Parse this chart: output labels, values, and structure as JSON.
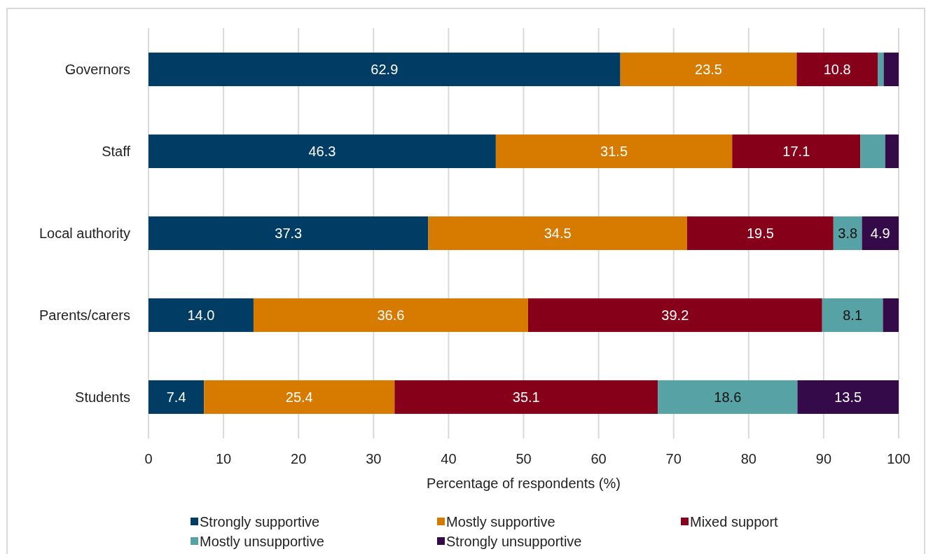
{
  "chart_data": {
    "type": "bar",
    "orientation": "horizontal",
    "stacked": true,
    "xlabel": "Percentage of respondents (%)",
    "categories": [
      "Governors",
      "Staff",
      "Local authority",
      "Parents/carers",
      "Students"
    ],
    "series": [
      {
        "name": "Strongly supportive",
        "color": "#003c64",
        "values": [
          62.9,
          46.3,
          37.3,
          14.0,
          7.4
        ],
        "value_labels": [
          "62.9",
          "46.3",
          "37.3",
          "14.0",
          "7.4"
        ]
      },
      {
        "name": "Mostly supportive",
        "color": "#d67a00",
        "values": [
          23.5,
          31.5,
          34.5,
          36.6,
          25.4
        ],
        "value_labels": [
          "23.5",
          "31.5",
          "34.5",
          "36.6",
          "25.4"
        ]
      },
      {
        "name": "Mixed support",
        "color": "#870019",
        "values": [
          10.8,
          17.1,
          19.5,
          39.2,
          35.1
        ],
        "value_labels": [
          "10.8",
          "17.1",
          "19.5",
          "39.2",
          "35.1"
        ]
      },
      {
        "name": "Mostly unsupportive",
        "color": "#56a2a4",
        "values": [
          0.8,
          3.3,
          3.8,
          8.1,
          18.6
        ],
        "value_labels": [
          null,
          null,
          "3.8",
          "8.1",
          "18.6"
        ]
      },
      {
        "name": "Strongly unsupportive",
        "color": "#340b48",
        "values": [
          2.0,
          1.8,
          4.9,
          2.1,
          13.5
        ],
        "value_labels": [
          null,
          null,
          "4.9",
          null,
          "13.5"
        ]
      }
    ],
    "xlim": [
      0,
      100
    ],
    "xticks": [
      0,
      10,
      20,
      30,
      40,
      50,
      60,
      70,
      80,
      90,
      100
    ],
    "grid": "x",
    "legend": "bottom"
  }
}
